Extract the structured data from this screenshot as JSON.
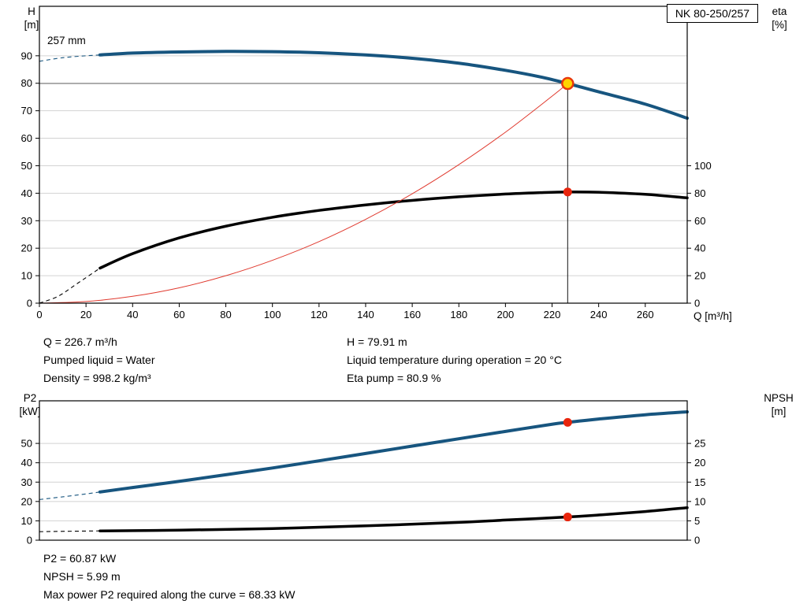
{
  "header": {
    "model": "NK 80-250/257"
  },
  "top_chart_labels": {
    "left_title": "H",
    "left_unit": "[m]",
    "right_title": "eta",
    "right_unit": "[%]",
    "x_label": "Q [m³/h]",
    "curve_label": "257 mm"
  },
  "bottom_chart_labels": {
    "left_title": "P2",
    "left_unit": "[kW]",
    "right_title": "NPSH",
    "right_unit": "[m]"
  },
  "duty_info": {
    "q": "Q = 226.7 m³/h",
    "liquid": "Pumped liquid = Water",
    "density": "Density = 998.2 kg/m³",
    "h": "H = 79.91 m",
    "temperature": "Liquid temperature during operation = 20 °C",
    "eta": "Eta pump = 80.9 %"
  },
  "result_info": {
    "p2": "P2 = 60.87 kW",
    "npsh": "NPSH = 5.99 m",
    "max_power": "Max power P2 required along the curve = 68.33 kW"
  },
  "chart_data": [
    {
      "type": "line",
      "title": "NK 80-250/257",
      "xlabel": "Q [m³/h]",
      "ylabel_left": "H [m]",
      "ylabel_right": "eta [%]",
      "xlim": [
        0,
        278
      ],
      "ylim_left": [
        0,
        108
      ],
      "right_axis_factor": 0.5,
      "x_ticks": [
        0,
        20,
        40,
        60,
        80,
        100,
        120,
        140,
        160,
        180,
        200,
        220,
        240,
        260
      ],
      "y_ticks_left": [
        0,
        10,
        20,
        30,
        40,
        50,
        60,
        70,
        80,
        90
      ],
      "y_ticks_right": [
        0,
        20,
        40,
        60,
        80,
        100
      ],
      "grid": "horizontal",
      "legend": "none",
      "duty_point": {
        "q": 226.7,
        "h": 79.91,
        "eta_pct": 80.9
      },
      "duty_guides": true,
      "series": [
        {
          "name": "257 mm",
          "role": "head-curve",
          "axis": "left",
          "color": "#17557f",
          "width": 4,
          "dashed_points": [
            [
              0,
              88
            ],
            [
              10,
              89.3
            ],
            [
              20,
              90.0
            ],
            [
              26,
              90.3
            ]
          ],
          "points": [
            [
              26,
              90.3
            ],
            [
              40,
              91.0
            ],
            [
              60,
              91.4
            ],
            [
              80,
              91.6
            ],
            [
              100,
              91.5
            ],
            [
              120,
              91.1
            ],
            [
              140,
              90.3
            ],
            [
              160,
              89.1
            ],
            [
              180,
              87.3
            ],
            [
              200,
              84.7
            ],
            [
              215,
              82.3
            ],
            [
              226.7,
              79.91
            ],
            [
              240,
              76.9
            ],
            [
              260,
              72.4
            ],
            [
              278,
              67.3
            ]
          ]
        },
        {
          "name": "eta",
          "role": "efficiency-curve",
          "axis": "right",
          "color": "#000000",
          "width": 3.5,
          "dashed_points": [
            [
              0,
              0
            ],
            [
              8,
              5
            ],
            [
              16,
              14
            ],
            [
              26,
              25.5
            ]
          ],
          "points": [
            [
              26,
              25.5
            ],
            [
              40,
              36
            ],
            [
              60,
              47.5
            ],
            [
              80,
              56
            ],
            [
              100,
              62.5
            ],
            [
              120,
              67.5
            ],
            [
              140,
              71.5
            ],
            [
              160,
              74.8
            ],
            [
              180,
              77.4
            ],
            [
              200,
              79.4
            ],
            [
              215,
              80.4
            ],
            [
              226.7,
              80.9
            ],
            [
              240,
              80.7
            ],
            [
              260,
              79.2
            ],
            [
              278,
              76.6
            ]
          ]
        },
        {
          "name": "system curve",
          "role": "system-curve",
          "axis": "left",
          "color": "#e03a2f",
          "width": 1,
          "points": [
            [
              0,
              0
            ],
            [
              20,
              0.6
            ],
            [
              40,
              2.5
            ],
            [
              60,
              5.6
            ],
            [
              80,
              10.0
            ],
            [
              100,
              15.6
            ],
            [
              120,
              22.4
            ],
            [
              140,
              30.5
            ],
            [
              160,
              39.8
            ],
            [
              180,
              50.4
            ],
            [
              200,
              62.2
            ],
            [
              220,
              75.3
            ],
            [
              226.7,
              79.91
            ]
          ]
        }
      ],
      "markers": [
        {
          "name": "duty-point",
          "q": 226.7,
          "v": 79.91,
          "axis": "left",
          "r": 7,
          "fill": "#ffd400",
          "stroke": "#e8380d",
          "stroke_width": 2.5
        },
        {
          "name": "duty-eta-point",
          "q": 226.7,
          "v": 80.9,
          "axis": "right",
          "r": 5.5,
          "fill": "#e8250d"
        }
      ]
    },
    {
      "type": "line",
      "title": "",
      "xlabel": "Q [m³/h]",
      "ylabel_left": "P2 [kW]",
      "ylabel_right": "NPSH [m]",
      "xlim": [
        0,
        278
      ],
      "ylim_left": [
        0,
        72
      ],
      "right_axis_factor": 2,
      "x_ticks": [],
      "y_ticks_left": [
        0,
        10,
        20,
        30,
        40,
        50
      ],
      "y_ticks_right": [
        0,
        5,
        10,
        15,
        20,
        25
      ],
      "grid": "horizontal",
      "legend": "none",
      "duty_point": {
        "q": 226.7,
        "p2_kw": 60.87,
        "npsh_m": 5.99
      },
      "duty_guides": false,
      "series": [
        {
          "name": "P2",
          "role": "power-curve",
          "axis": "left",
          "color": "#17557f",
          "width": 4,
          "dashed_points": [
            [
              0,
              21
            ],
            [
              10,
              22.4
            ],
            [
              20,
              23.9
            ],
            [
              26,
              24.9
            ]
          ],
          "points": [
            [
              26,
              24.9
            ],
            [
              40,
              27.2
            ],
            [
              60,
              30.4
            ],
            [
              80,
              33.8
            ],
            [
              100,
              37.3
            ],
            [
              120,
              41.0
            ],
            [
              140,
              44.8
            ],
            [
              160,
              48.6
            ],
            [
              180,
              52.4
            ],
            [
              200,
              56.2
            ],
            [
              220,
              59.9
            ],
            [
              226.7,
              60.87
            ],
            [
              240,
              62.6
            ],
            [
              260,
              64.8
            ],
            [
              278,
              66.3
            ]
          ]
        },
        {
          "name": "NPSH",
          "role": "npsh-curve",
          "axis": "right",
          "color": "#000000",
          "width": 3.5,
          "dashed_points": [
            [
              0,
              2.2
            ],
            [
              12,
              2.3
            ],
            [
              26,
              2.4
            ]
          ],
          "points": [
            [
              26,
              2.4
            ],
            [
              60,
              2.6
            ],
            [
              100,
              3.0
            ],
            [
              140,
              3.7
            ],
            [
              180,
              4.6
            ],
            [
              200,
              5.2
            ],
            [
              226.7,
              5.99
            ],
            [
              240,
              6.5
            ],
            [
              260,
              7.4
            ],
            [
              278,
              8.4
            ]
          ]
        }
      ],
      "markers": [
        {
          "name": "duty-p2-point",
          "q": 226.7,
          "v": 60.87,
          "axis": "left",
          "r": 5.5,
          "fill": "#e8250d"
        },
        {
          "name": "duty-npsh-point",
          "q": 226.7,
          "v": 5.99,
          "axis": "right",
          "r": 5.5,
          "fill": "#e8250d"
        }
      ]
    }
  ]
}
